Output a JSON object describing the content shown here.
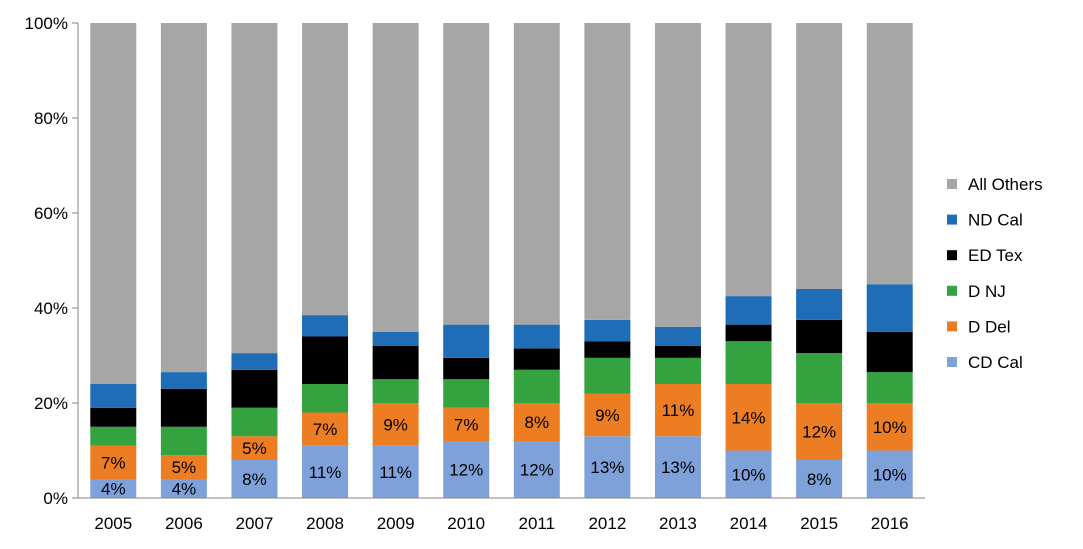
{
  "chart_data": {
    "type": "bar",
    "stacked": true,
    "percent_stacked": true,
    "categories": [
      "2005",
      "2006",
      "2007",
      "2008",
      "2009",
      "2010",
      "2011",
      "2012",
      "2013",
      "2014",
      "2015",
      "2016"
    ],
    "ylim": [
      0,
      100
    ],
    "yticks": [
      "0%",
      "20%",
      "40%",
      "60%",
      "80%",
      "100%"
    ],
    "ytick_values": [
      0,
      20,
      40,
      60,
      80,
      100
    ],
    "grid": false,
    "legend_position": "right",
    "series": [
      {
        "name": "CD Cal",
        "color": "#7EA1D9",
        "values": [
          4,
          4,
          8,
          11,
          11,
          12,
          12,
          13,
          13,
          10,
          8,
          10
        ],
        "labels": [
          "4%",
          "4%",
          "8%",
          "11%",
          "11%",
          "12%",
          "12%",
          "13%",
          "13%",
          "10%",
          "8%",
          "10%"
        ]
      },
      {
        "name": "D Del",
        "color": "#ED7D22",
        "values": [
          7,
          5,
          5,
          7,
          9,
          7,
          8,
          9,
          11,
          14,
          12,
          10
        ],
        "labels": [
          "7%",
          "5%",
          "5%",
          "7%",
          "9%",
          "7%",
          "8%",
          "9%",
          "11%",
          "14%",
          "12%",
          "10%"
        ]
      },
      {
        "name": "D NJ",
        "color": "#33A23F",
        "values": [
          4,
          6,
          6,
          6,
          5,
          6,
          7,
          7.5,
          5.5,
          9,
          10.5,
          6.5
        ]
      },
      {
        "name": "ED Tex",
        "color": "#000000",
        "values": [
          4,
          8,
          8,
          10,
          7,
          4.5,
          4.5,
          3.5,
          2.5,
          3.5,
          7,
          8.5
        ]
      },
      {
        "name": "ND Cal",
        "color": "#1F6DB6",
        "values": [
          5,
          3.5,
          3.5,
          4.5,
          3,
          7,
          5,
          4.5,
          4,
          6,
          6.5,
          10
        ]
      },
      {
        "name": "All Others",
        "color": "#A6A6A6",
        "values": [
          76,
          73.5,
          69.5,
          61.5,
          65,
          63.5,
          63.5,
          62.5,
          64,
          57.5,
          56,
          55
        ]
      }
    ]
  }
}
